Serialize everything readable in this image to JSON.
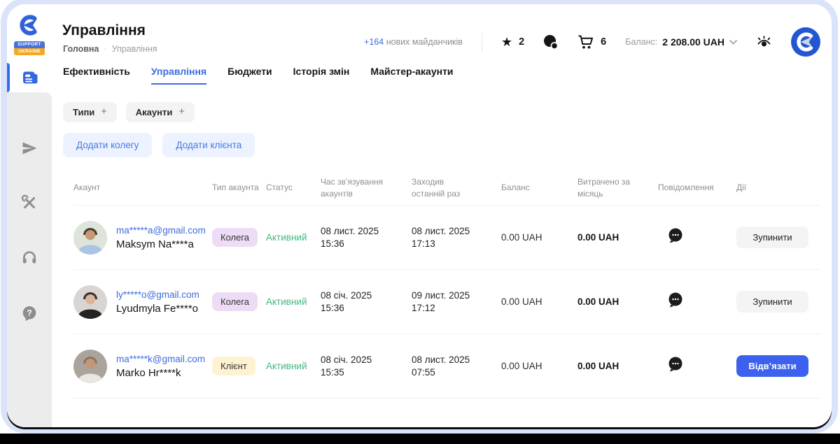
{
  "window": {
    "frame_color": "#dbe3fa"
  },
  "icons": {
    "star_glyph": "★"
  },
  "colors": {
    "accent_blue": "#3b6ce0",
    "primary_button_blue": "#3c61ee",
    "status_active_green": "#43b581",
    "badge_colleague": "#eedcf6",
    "badge_client": "#fdf3d2",
    "sidebar_gray": "#ececec"
  },
  "sidebar": {
    "logo": {
      "support": "SUPPORT",
      "ukraine": "UKRAINE"
    },
    "nav": [
      {
        "id": "news",
        "icon": "news-icon",
        "active": true
      },
      {
        "id": "send",
        "icon": "paper-plane-icon",
        "active": false
      },
      {
        "id": "tools",
        "icon": "tools-icon",
        "active": false
      },
      {
        "id": "support",
        "icon": "headphones-icon",
        "active": false
      },
      {
        "id": "help",
        "icon": "help-bubble-icon",
        "active": false
      }
    ]
  },
  "header": {
    "title": "Управління",
    "breadcrumb": {
      "home": "Головна",
      "separator": "·",
      "current": "Управління"
    },
    "new_platforms_count": "+164",
    "new_platforms_label": "нових майданчиків",
    "favorites_count": "2",
    "cart_count": "6",
    "balance_label": "Баланс:",
    "balance_value": "2 208.00 UAH"
  },
  "tabs": [
    {
      "label": "Ефективність",
      "active": false
    },
    {
      "label": "Управління",
      "active": true
    },
    {
      "label": "Бюджети",
      "active": false
    },
    {
      "label": "Історія змін",
      "active": false
    },
    {
      "label": "Майстер-акаунти",
      "active": false
    }
  ],
  "filters": [
    {
      "label": "Типи",
      "plus": "+"
    },
    {
      "label": "Акаунти",
      "plus": "+"
    }
  ],
  "action_buttons": [
    {
      "label": "Додати колегу"
    },
    {
      "label": "Додати клієнта"
    }
  ],
  "table": {
    "columns": [
      "Акаунт",
      "Тип акаунта",
      "Статус",
      "Час зв’язування акаунтів",
      "Заходив останній раз",
      "Баланс",
      "Витрачено за місяць",
      "Повідомлення",
      "Дії"
    ],
    "rows": [
      {
        "email": "ma*****a@gmail.com",
        "name": "Maksym Na****a",
        "type": "Колега",
        "type_bg": "#eedcf6",
        "status": "Активний",
        "linked": [
          "08 лист. 2025",
          "15:36"
        ],
        "last_seen": [
          "08 лист. 2025",
          "17:13"
        ],
        "balance": "0.00 UAH",
        "spent": "0.00 UAH",
        "action": {
          "label": "Зупинити",
          "variant": "secondary"
        },
        "avatar": {
          "bg": "#dde4da",
          "skin": "#c79a76",
          "hair": "#4c3a2a",
          "shirt": "#a9c4e6"
        }
      },
      {
        "email": "ly*****o@gmail.com",
        "name": "Lyudmyla Fe****o",
        "type": "Колега",
        "type_bg": "#eedcf6",
        "status": "Активний",
        "linked": [
          "08 січ. 2025",
          "15:36"
        ],
        "last_seen": [
          "09 лист. 2025",
          "17:12"
        ],
        "balance": "0.00 UAH",
        "spent": "0.00 UAH",
        "action": {
          "label": "Зупинити",
          "variant": "secondary"
        },
        "avatar": {
          "bg": "#d9d5d3",
          "skin": "#d9b69a",
          "hair": "#38302b",
          "shirt": "#262423"
        }
      },
      {
        "email": "ma*****k@gmail.com",
        "name": "Marko Hr****k",
        "type": "Клієнт",
        "type_bg": "#fdf3d2",
        "status": "Активний",
        "linked": [
          "08 січ. 2025",
          "15:35"
        ],
        "last_seen": [
          "08 лист. 2025",
          "07:55"
        ],
        "balance": "0.00 UAH",
        "spent": "0.00 UAH",
        "action": {
          "label": "Відв’язати",
          "variant": "primary"
        },
        "avatar": {
          "bg": "#aaa49c",
          "skin": "#c2987a",
          "hair": "#8a7560",
          "shirt": "#e9e7e3"
        }
      }
    ]
  }
}
